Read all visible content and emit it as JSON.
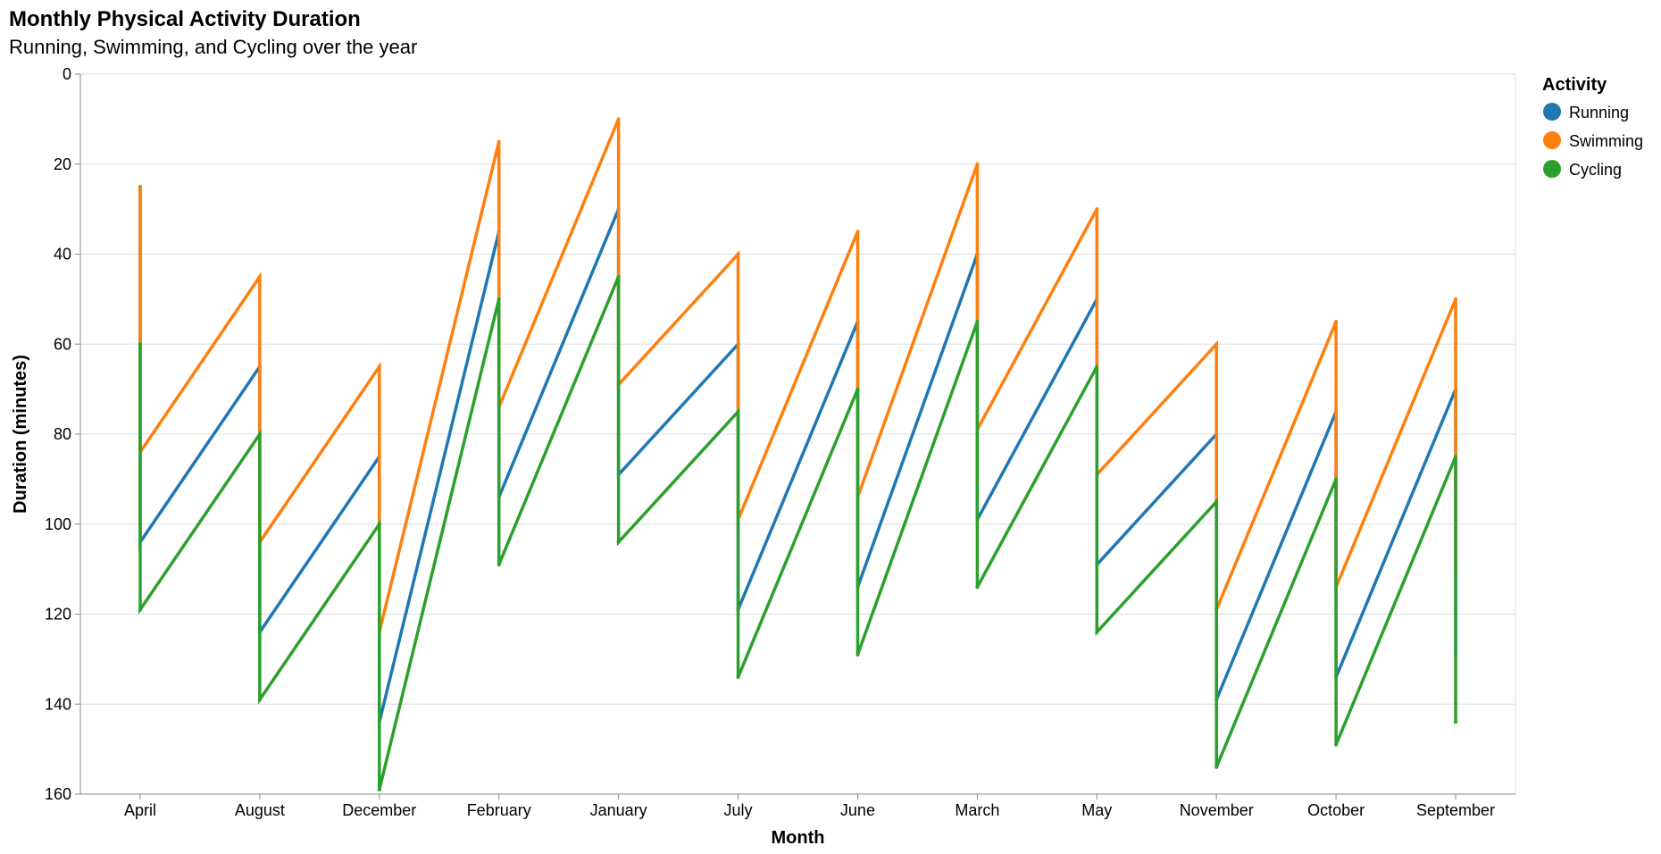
{
  "chart_data": {
    "type": "line",
    "title": "Monthly Physical Activity Duration",
    "subtitle": "Running, Swimming, and Cycling over the year",
    "xlabel": "Month",
    "ylabel": "Duration (minutes)",
    "ylim": [
      0,
      160
    ],
    "y_reversed": true,
    "y_ticks": [
      0,
      20,
      40,
      60,
      80,
      100,
      120,
      140,
      160
    ],
    "grid": true,
    "legend": {
      "title": "Activity",
      "position": "top-right"
    },
    "categories": [
      "April",
      "August",
      "December",
      "February",
      "January",
      "July",
      "June",
      "March",
      "May",
      "November",
      "October",
      "September"
    ],
    "series": [
      {
        "name": "Running",
        "color": "#1f77b4",
        "values": [
          [
            25,
            104
          ],
          [
            65,
            124
          ],
          [
            85,
            144
          ],
          [
            35,
            94
          ],
          [
            30,
            89
          ],
          [
            60,
            119
          ],
          [
            55,
            114
          ],
          [
            40,
            99
          ],
          [
            50,
            109
          ],
          [
            80,
            139
          ],
          [
            75,
            134
          ],
          [
            70,
            129
          ]
        ]
      },
      {
        "name": "Swimming",
        "color": "#ff7f0e",
        "values": [
          [
            25,
            84
          ],
          [
            45,
            104
          ],
          [
            65,
            124
          ],
          [
            15,
            74
          ],
          [
            10,
            69
          ],
          [
            40,
            99
          ],
          [
            35,
            94
          ],
          [
            20,
            79
          ],
          [
            30,
            89
          ],
          [
            60,
            119
          ],
          [
            55,
            114
          ],
          [
            50,
            109
          ]
        ]
      },
      {
        "name": "Cycling",
        "color": "#2ca02c",
        "values": [
          [
            60,
            119
          ],
          [
            80,
            139
          ],
          [
            100,
            159
          ],
          [
            50,
            109
          ],
          [
            45,
            104
          ],
          [
            75,
            134
          ],
          [
            70,
            129
          ],
          [
            55,
            114
          ],
          [
            65,
            124
          ],
          [
            95,
            154
          ],
          [
            90,
            149
          ],
          [
            85,
            144
          ]
        ]
      }
    ]
  }
}
